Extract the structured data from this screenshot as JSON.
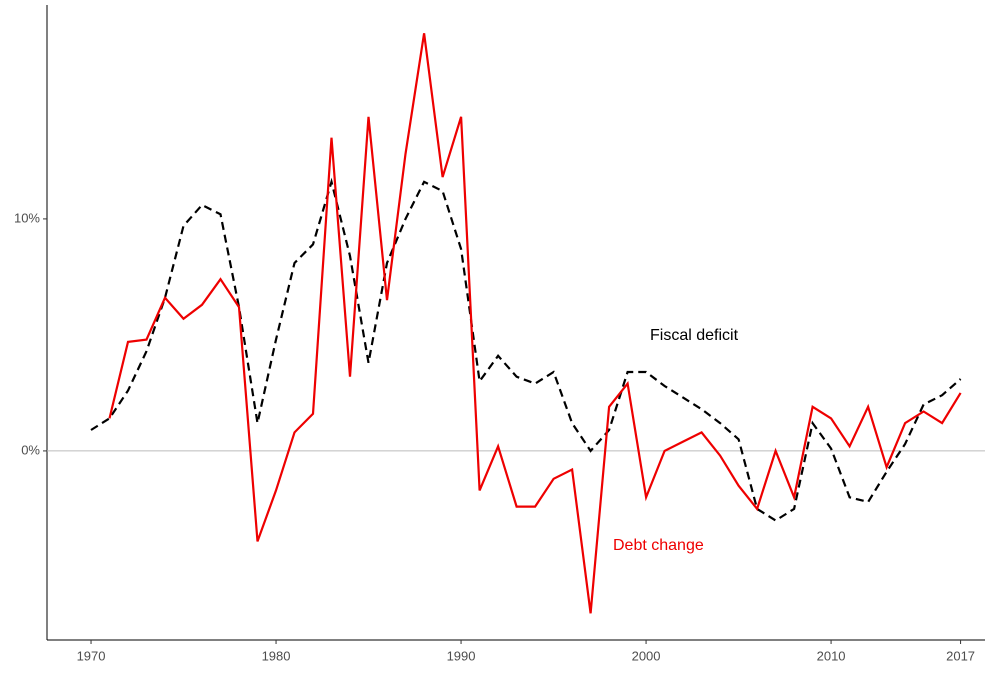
{
  "chart_data": {
    "type": "line",
    "x": [
      1970,
      1971,
      1972,
      1973,
      1974,
      1975,
      1976,
      1977,
      1978,
      1979,
      1980,
      1981,
      1982,
      1983,
      1984,
      1985,
      1986,
      1987,
      1988,
      1989,
      1990,
      1991,
      1992,
      1993,
      1994,
      1995,
      1996,
      1997,
      1998,
      1999,
      2000,
      2001,
      2002,
      2003,
      2004,
      2005,
      2006,
      2007,
      2008,
      2009,
      2010,
      2011,
      2012,
      2013,
      2014,
      2015,
      2016,
      2017
    ],
    "series": [
      {
        "name": "Fiscal deficit",
        "color": "#000000",
        "dash": true,
        "values": [
          0.9,
          1.4,
          2.6,
          4.3,
          6.6,
          9.7,
          10.6,
          10.2,
          6.2,
          1.2,
          4.8,
          8.1,
          8.9,
          11.6,
          8.4,
          3.8,
          8.1,
          10.0,
          11.6,
          11.2,
          8.7,
          3.0,
          4.1,
          3.2,
          2.9,
          3.4,
          1.2,
          0.0,
          0.9,
          3.4,
          3.4,
          2.8,
          2.3,
          1.8,
          1.2,
          0.5,
          -2.5,
          -3.0,
          -2.5,
          1.2,
          0.1,
          -2.0,
          -2.2,
          -0.9,
          0.3,
          2.0,
          2.4,
          3.1
        ]
      },
      {
        "name": "Debt change",
        "color": "#ee0000",
        "dash": false,
        "values": [
          null,
          1.4,
          4.7,
          4.8,
          6.6,
          5.7,
          6.3,
          7.4,
          6.2,
          -3.9,
          -1.7,
          0.8,
          1.6,
          13.5,
          3.2,
          14.4,
          6.5,
          12.8,
          18.0,
          11.8,
          14.4,
          -1.7,
          0.2,
          -2.4,
          -2.4,
          -1.2,
          -0.8,
          -7.0,
          1.9,
          2.9,
          -2.0,
          0.0,
          0.4,
          0.8,
          -0.2,
          -1.5,
          -2.5,
          0.0,
          -2.0,
          1.9,
          1.4,
          0.2,
          1.9,
          -0.7,
          1.2,
          1.7,
          1.2,
          2.5
        ]
      }
    ],
    "xlim": [
      1967.62,
      2018.32
    ],
    "xticks": [
      1970,
      1980,
      1990,
      2000,
      2010,
      2017
    ],
    "ylim": [
      -8.15,
      19.22
    ],
    "yticks": [
      {
        "value": 0,
        "label": "0%"
      },
      {
        "value": 10,
        "label": "10%"
      }
    ],
    "hline": 0,
    "legend": "inline"
  }
}
